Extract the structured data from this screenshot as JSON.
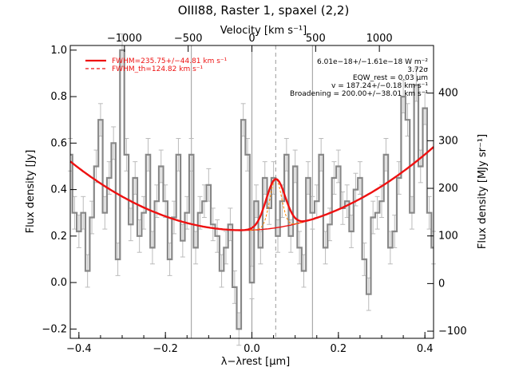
{
  "chart_data": {
    "type": "line",
    "title": "OIII88, Raster 1, spaxel (2,2)",
    "xlabel": "λ−λrest [μm]",
    "ylabel": "Flux density [Jy]",
    "ylabel_right": "Flux density [MJy sr⁻¹]",
    "xlabel_top": "Velocity [km s⁻¹]",
    "xlim": [
      -0.42,
      0.42
    ],
    "ylim": [
      -0.24,
      1.02
    ],
    "ylim_right": [
      -115,
      500
    ],
    "x_ticks": [
      "−0.4",
      "−0.2",
      "0.0",
      "0.2",
      "0.4"
    ],
    "y_ticks": [
      "−0.2",
      "0.0",
      "0.2",
      "0.4",
      "0.6",
      "0.8",
      "1.0"
    ],
    "top_ticks": [
      "−1000",
      "−500",
      "0",
      "500",
      "1000"
    ],
    "right_ticks": [
      "−100",
      "0",
      "100",
      "200",
      "300",
      "400"
    ],
    "vlines": [
      -0.14,
      0.0,
      0.14
    ],
    "line_center": 0.055,
    "series": [
      {
        "name": "spectrum",
        "color": "#888888",
        "style": "step",
        "x": [
          -0.42,
          -0.41,
          -0.4,
          -0.39,
          -0.38,
          -0.37,
          -0.36,
          -0.35,
          -0.34,
          -0.33,
          -0.32,
          -0.31,
          -0.3,
          -0.29,
          -0.28,
          -0.27,
          -0.26,
          -0.25,
          -0.24,
          -0.23,
          -0.22,
          -0.21,
          -0.2,
          -0.19,
          -0.18,
          -0.17,
          -0.16,
          -0.15,
          -0.14,
          -0.13,
          -0.12,
          -0.11,
          -0.1,
          -0.09,
          -0.08,
          -0.07,
          -0.06,
          -0.05,
          -0.04,
          -0.03,
          -0.02,
          -0.01,
          0.0,
          0.01,
          0.02,
          0.03,
          0.04,
          0.05,
          0.06,
          0.07,
          0.08,
          0.09,
          0.1,
          0.11,
          0.12,
          0.13,
          0.14,
          0.15,
          0.16,
          0.17,
          0.18,
          0.19,
          0.2,
          0.21,
          0.22,
          0.23,
          0.24,
          0.25,
          0.26,
          0.27,
          0.28,
          0.29,
          0.3,
          0.31,
          0.32,
          0.33,
          0.34,
          0.35,
          0.36,
          0.37,
          0.38,
          0.39,
          0.4,
          0.41,
          0.42
        ],
        "values": [
          0.55,
          0.3,
          0.22,
          0.3,
          0.05,
          0.28,
          0.5,
          0.7,
          0.3,
          0.45,
          0.6,
          0.1,
          1.0,
          0.55,
          0.25,
          0.45,
          0.2,
          0.3,
          0.55,
          0.15,
          0.35,
          0.5,
          0.35,
          0.1,
          0.28,
          0.55,
          0.18,
          0.3,
          0.55,
          0.15,
          0.3,
          0.35,
          0.42,
          0.25,
          0.2,
          0.05,
          0.15,
          0.25,
          -0.02,
          -0.2,
          0.7,
          0.55,
          0.0,
          0.35,
          0.15,
          0.45,
          0.32,
          0.45,
          0.2,
          0.35,
          0.55,
          0.2,
          0.5,
          0.15,
          0.05,
          0.45,
          0.3,
          0.35,
          0.55,
          0.15,
          0.25,
          0.45,
          0.5,
          0.32,
          0.35,
          0.22,
          0.4,
          0.45,
          0.1,
          -0.05,
          0.28,
          0.3,
          0.35,
          0.55,
          0.15,
          0.22,
          0.45,
          0.8,
          0.7,
          0.3,
          0.85,
          0.5,
          0.75,
          0.3,
          0.15
        ]
      }
    ],
    "legend": [
      {
        "label": "FWHM=235.75+/−44.81 km s⁻¹",
        "style": "solid",
        "color": "#ee1111"
      },
      {
        "label": "FWHM_th=124.82 km s⁻¹",
        "style": "dashed",
        "color": "#ee1111"
      }
    ],
    "annotations": [
      "6.01e−18+/−1.61e−18 W m⁻²",
      "3.72σ",
      "EQW_rest = 0.03 μm",
      "v = 187.24+/−0.18 km s⁻¹",
      "Broadening = 200.00+/−38.01 km s⁻¹"
    ],
    "fit": {
      "baseline_center": -0.02,
      "baseline_min": 0.225,
      "baseline_curv": 1.85,
      "gauss_amp": 0.21,
      "gauss_center": 0.055,
      "gauss_sigma": 0.022,
      "thermal_sigma": 0.0135,
      "color": "#ee1111",
      "thermal_color": "#ff8800"
    },
    "grid": false
  }
}
